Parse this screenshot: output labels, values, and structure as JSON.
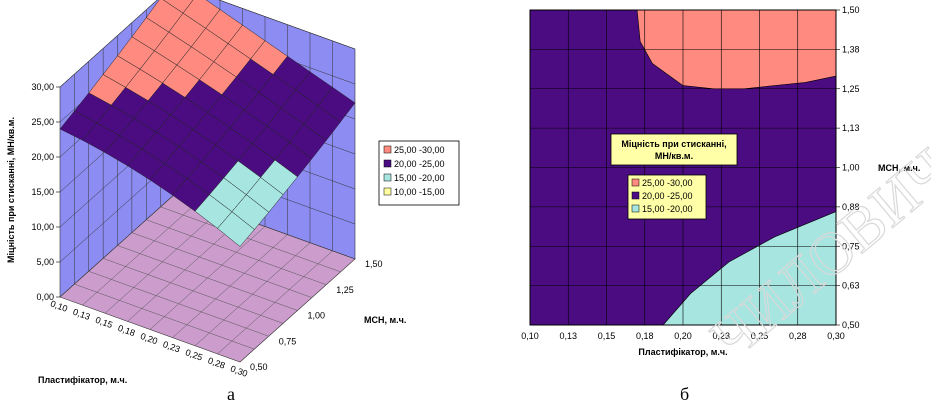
{
  "panels": {
    "left_caption": "а",
    "right_caption": "б"
  },
  "watermark": "ЧИЛОВИЧ",
  "colors": {
    "band_25_30": "#ff8a80",
    "band_20_25": "#4b0c82",
    "band_15_20": "#a6e5e0",
    "band_10_15": "#ffffa0",
    "floor": "#cc9ccc",
    "wall": "#8c8cf2",
    "legend_title_bg": "#ffffa8"
  },
  "chart_data": [
    {
      "type": "surface",
      "ylabel": "Міцність при стисканні, МН/кв.м.",
      "xlabel": "Пластифікатор, м.ч.",
      "zlabel": "МСН, м.ч.",
      "x_ticks": [
        "0,10",
        "0,13",
        "0,15",
        "0,18",
        "0,20",
        "0,23",
        "0,25",
        "0,28",
        "0,30"
      ],
      "depth_ticks": [
        "0,50",
        "0,75",
        "1,00",
        "1,25",
        "1,50"
      ],
      "y_ticks": [
        "0,00",
        "5,00",
        "10,00",
        "15,00",
        "20,00",
        "25,00",
        "30,00"
      ],
      "ylim": [
        0,
        30
      ],
      "xlim": [
        0.1,
        0.3
      ],
      "depth_lim": [
        0.5,
        1.5
      ],
      "legend": [
        "25,00 -30,00",
        "20,00 -25,00",
        "15,00 -20,00",
        "10,00 -15,00"
      ],
      "legend_position": "right"
    },
    {
      "type": "contour",
      "legend_title": "Міцність при стисканні, МН/кв.м.",
      "xlabel": "Пластифікатор, м.ч.",
      "ylabel": "МСН, м.ч.",
      "x_ticks": [
        "0,10",
        "0,13",
        "0,15",
        "0,18",
        "0,20",
        "0,23",
        "0,25",
        "0,28",
        "0,30"
      ],
      "y_ticks": [
        "0,50",
        "0,63",
        "0,75",
        "0,88",
        "1,00",
        "1,13",
        "1,25",
        "1,38",
        "1,50"
      ],
      "xlim": [
        0.1,
        0.3
      ],
      "ylim": [
        0.5,
        1.5
      ],
      "legend": [
        "25,00 -30,00",
        "20,00 -25,00",
        "15,00 -20,00"
      ],
      "regions": [
        {
          "band": "25,00 -30,00",
          "boundary": [
            [
              0.17,
              1.5
            ],
            [
              0.172,
              1.4
            ],
            [
              0.18,
              1.33
            ],
            [
              0.2,
              1.26
            ],
            [
              0.22,
              1.25
            ],
            [
              0.24,
              1.25
            ],
            [
              0.26,
              1.26
            ],
            [
              0.28,
              1.27
            ],
            [
              0.3,
              1.29
            ],
            [
              0.3,
              1.5
            ]
          ]
        },
        {
          "band": "15,00 -20,00",
          "boundary": [
            [
              0.187,
              0.5
            ],
            [
              0.205,
              0.6
            ],
            [
              0.23,
              0.7
            ],
            [
              0.26,
              0.78
            ],
            [
              0.3,
              0.86
            ],
            [
              0.3,
              0.5
            ]
          ]
        }
      ]
    }
  ]
}
